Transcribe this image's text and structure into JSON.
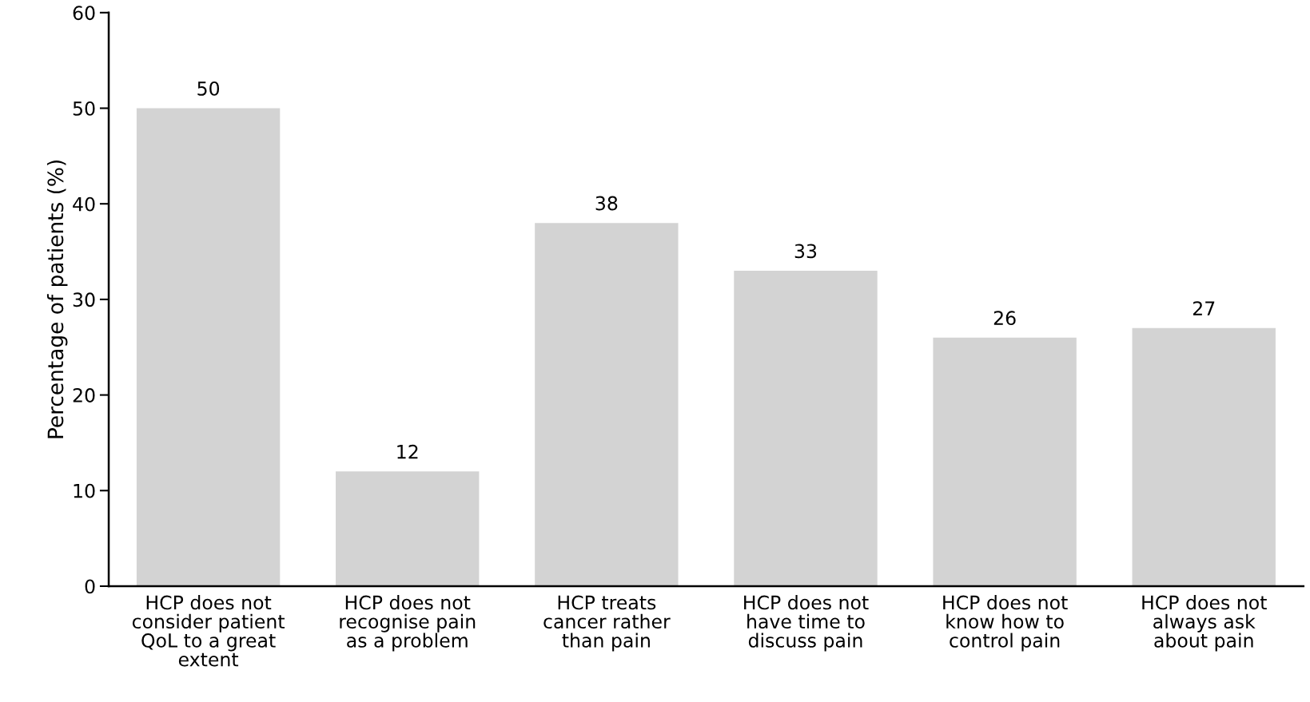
{
  "chart_data": {
    "type": "bar",
    "ylabel": "Percentage of patients (%)",
    "categories": [
      "HCP does not\nconsider patient\nQoL to a great\nextent",
      "HCP does not\nrecognise pain\nas a problem",
      "HCP treats\ncancer rather\nthan pain",
      "HCP does not\nhave time to\ndiscuss pain",
      "HCP does not\nknow how to\ncontrol pain",
      "HCP does not\nalways ask\nabout pain"
    ],
    "values": [
      50,
      12,
      38,
      33,
      26,
      27
    ],
    "color": "#d3d3d3",
    "data_labels": true,
    "ylim": [
      0,
      60
    ],
    "yticks": [
      0,
      10,
      20,
      30,
      40,
      50,
      60
    ],
    "grid": false
  }
}
